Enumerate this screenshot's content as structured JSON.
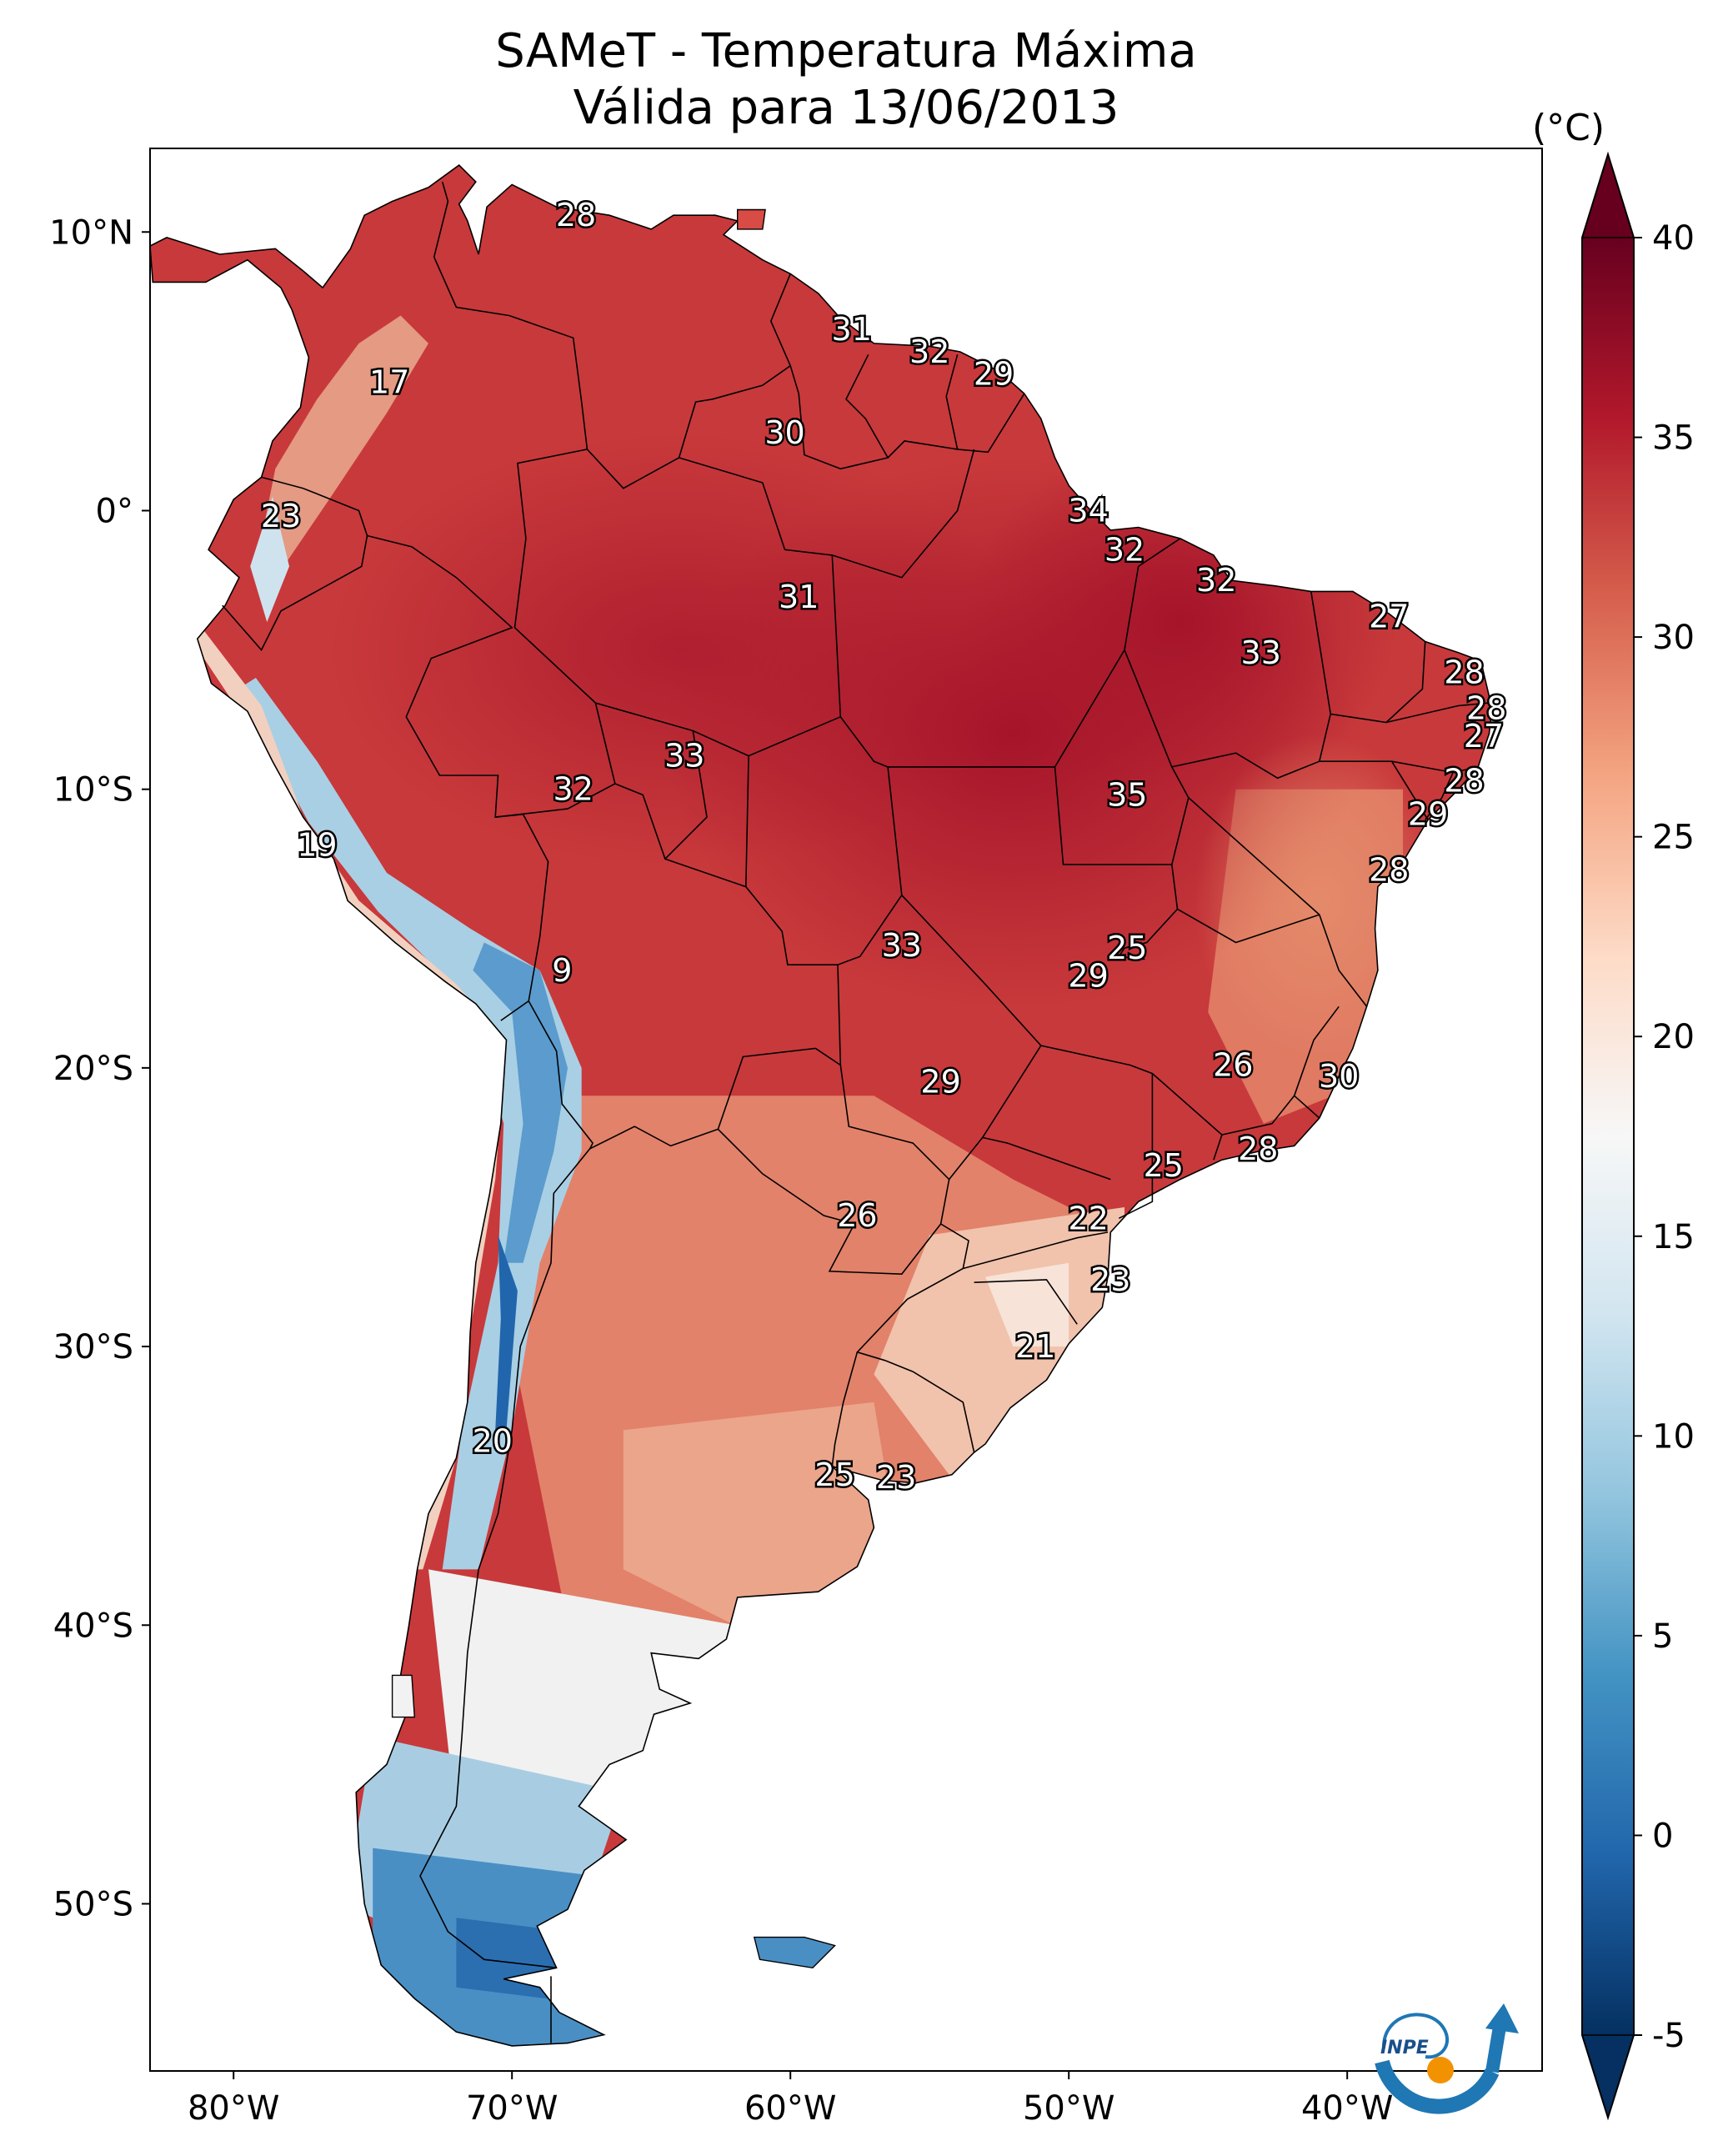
{
  "title": {
    "line1": "SAMeT - Temperatura Máxima",
    "line2": "Válida para 13/06/2013"
  },
  "map_extent": {
    "lon_min": -83,
    "lon_max": -33,
    "lat_min": -56,
    "lat_max": 13
  },
  "axes": {
    "x_ticks": [
      {
        "lon": -80,
        "label": "80°W"
      },
      {
        "lon": -70,
        "label": "70°W"
      },
      {
        "lon": -60,
        "label": "60°W"
      },
      {
        "lon": -50,
        "label": "50°W"
      },
      {
        "lon": -40,
        "label": "40°W"
      }
    ],
    "y_ticks": [
      {
        "lat": 10,
        "label": "10°N"
      },
      {
        "lat": 0,
        "label": "0°"
      },
      {
        "lat": -10,
        "label": "10°S"
      },
      {
        "lat": -20,
        "label": "20°S"
      },
      {
        "lat": -30,
        "label": "30°S"
      },
      {
        "lat": -40,
        "label": "40°S"
      },
      {
        "lat": -50,
        "label": "50°S"
      }
    ]
  },
  "colorbar": {
    "unit": "(°C)",
    "min": -5,
    "max": 40,
    "extend": "both",
    "colormap": "RdBu_r",
    "ticks": [
      {
        "value": 40,
        "label": "40"
      },
      {
        "value": 35,
        "label": "35"
      },
      {
        "value": 30,
        "label": "30"
      },
      {
        "value": 25,
        "label": "25"
      },
      {
        "value": 20,
        "label": "20"
      },
      {
        "value": 15,
        "label": "15"
      },
      {
        "value": 10,
        "label": "10"
      },
      {
        "value": 5,
        "label": "5"
      },
      {
        "value": 0,
        "label": "0"
      },
      {
        "value": -5,
        "label": "-5"
      }
    ],
    "colors": [
      "#053061",
      "#2166ac",
      "#4393c3",
      "#92c5de",
      "#d1e5f0",
      "#f7f7f7",
      "#fddbc7",
      "#f4a582",
      "#d6604d",
      "#b2182b",
      "#67001f"
    ]
  },
  "colors": {
    "ocean": "#ffffff",
    "warm_land": "#c8393b",
    "hot_land": "#b2182b",
    "mild_land": "#e0795f",
    "cool_land": "#f3d9ce",
    "cold_andes": "#6fa8d2",
    "very_cold": "#2166ac",
    "borders": "#000000"
  },
  "station_labels": [
    {
      "lon": -67.7,
      "lat": 10.6,
      "value": "28"
    },
    {
      "lon": -57.8,
      "lat": 6.5,
      "value": "31"
    },
    {
      "lon": -55.0,
      "lat": 5.7,
      "value": "32"
    },
    {
      "lon": -52.7,
      "lat": 4.9,
      "value": "29"
    },
    {
      "lon": -60.2,
      "lat": 2.8,
      "value": "30"
    },
    {
      "lon": -74.4,
      "lat": 4.6,
      "value": "17"
    },
    {
      "lon": -78.3,
      "lat": -0.2,
      "value": "23"
    },
    {
      "lon": -49.3,
      "lat": 0.0,
      "value": "34"
    },
    {
      "lon": -48.0,
      "lat": -1.4,
      "value": "32"
    },
    {
      "lon": -44.7,
      "lat": -2.5,
      "value": "32"
    },
    {
      "lon": -59.7,
      "lat": -3.1,
      "value": "31"
    },
    {
      "lon": -38.5,
      "lat": -3.8,
      "value": "27"
    },
    {
      "lon": -43.1,
      "lat": -5.1,
      "value": "33"
    },
    {
      "lon": -35.8,
      "lat": -5.8,
      "value": "28"
    },
    {
      "lon": -35.0,
      "lat": -7.1,
      "value": "28"
    },
    {
      "lon": -35.1,
      "lat": -8.1,
      "value": "27"
    },
    {
      "lon": -63.8,
      "lat": -8.8,
      "value": "33"
    },
    {
      "lon": -67.8,
      "lat": -10.0,
      "value": "32"
    },
    {
      "lon": -47.9,
      "lat": -10.2,
      "value": "35"
    },
    {
      "lon": -35.8,
      "lat": -9.7,
      "value": "28"
    },
    {
      "lon": -37.1,
      "lat": -10.9,
      "value": "29"
    },
    {
      "lon": -77.0,
      "lat": -12.0,
      "value": "19"
    },
    {
      "lon": -38.5,
      "lat": -12.9,
      "value": "28"
    },
    {
      "lon": -56.0,
      "lat": -15.6,
      "value": "33"
    },
    {
      "lon": -47.9,
      "lat": -15.7,
      "value": "25"
    },
    {
      "lon": -49.3,
      "lat": -16.7,
      "value": "29"
    },
    {
      "lon": -68.2,
      "lat": -16.5,
      "value": "9"
    },
    {
      "lon": -44.1,
      "lat": -19.9,
      "value": "26"
    },
    {
      "lon": -40.3,
      "lat": -20.3,
      "value": "30"
    },
    {
      "lon": -54.6,
      "lat": -20.5,
      "value": "29"
    },
    {
      "lon": -43.2,
      "lat": -22.9,
      "value": "28"
    },
    {
      "lon": -46.6,
      "lat": -23.5,
      "value": "25"
    },
    {
      "lon": -57.6,
      "lat": -25.3,
      "value": "26"
    },
    {
      "lon": -49.3,
      "lat": -25.4,
      "value": "22"
    },
    {
      "lon": -48.5,
      "lat": -27.6,
      "value": "23"
    },
    {
      "lon": -51.2,
      "lat": -30.0,
      "value": "21"
    },
    {
      "lon": -70.7,
      "lat": -33.4,
      "value": "20"
    },
    {
      "lon": -58.4,
      "lat": -34.6,
      "value": "25"
    },
    {
      "lon": -56.2,
      "lat": -34.7,
      "value": "23"
    }
  ],
  "logo": {
    "text": "INPE"
  }
}
